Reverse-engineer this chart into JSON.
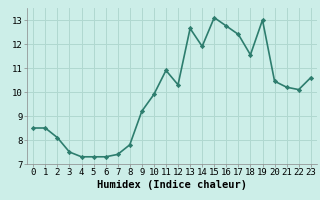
{
  "x": [
    0,
    1,
    2,
    3,
    4,
    5,
    6,
    7,
    8,
    9,
    10,
    11,
    12,
    13,
    14,
    15,
    16,
    17,
    18,
    19,
    20,
    21,
    22,
    23
  ],
  "y": [
    8.5,
    8.5,
    8.1,
    7.5,
    7.3,
    7.3,
    7.3,
    7.4,
    7.8,
    9.2,
    9.9,
    10.9,
    10.3,
    12.65,
    11.9,
    13.1,
    12.75,
    12.4,
    11.55,
    13.0,
    10.45,
    10.2,
    10.1,
    10.6
  ],
  "line_color": "#2d7d6e",
  "marker": "D",
  "marker_size": 2.2,
  "bg_color": "#cceee8",
  "grid_color": "#b0d8d0",
  "xlabel": "Humidex (Indice chaleur)",
  "xlim": [
    -0.5,
    23.5
  ],
  "ylim": [
    7,
    13.5
  ],
  "yticks": [
    7,
    8,
    9,
    10,
    11,
    12,
    13
  ],
  "xticks": [
    0,
    1,
    2,
    3,
    4,
    5,
    6,
    7,
    8,
    9,
    10,
    11,
    12,
    13,
    14,
    15,
    16,
    17,
    18,
    19,
    20,
    21,
    22,
    23
  ],
  "tick_fontsize": 6.5,
  "xlabel_fontsize": 7.5,
  "linewidth": 1.2
}
